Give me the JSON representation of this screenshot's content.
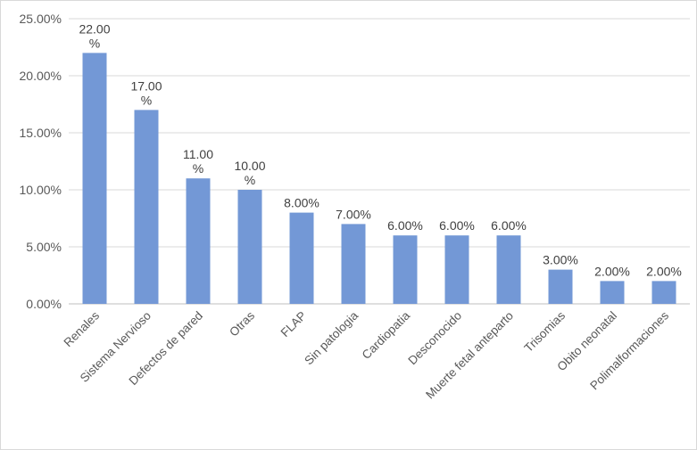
{
  "chart_data": {
    "type": "bar",
    "categories": [
      "Renales",
      "Sistema Nervioso",
      "Defectos de pared",
      "Otras",
      "FLAP",
      "Sin patologia",
      "Cardiopatia",
      "Desconocido",
      "Muerte fetal anteparto",
      "Trisomias",
      "Obito neonatal",
      "Polimalformaciones"
    ],
    "values": [
      22.0,
      17.0,
      11.0,
      10.0,
      8.0,
      7.0,
      6.0,
      6.0,
      6.0,
      3.0,
      2.0,
      2.0
    ],
    "data_labels": [
      "22.00 %",
      "17.00 %",
      "11.00 %",
      "10.00 %",
      "8.00%",
      "7.00%",
      "6.00%",
      "6.00%",
      "6.00%",
      "3.00%",
      "2.00%",
      "2.00%"
    ],
    "y_ticks": [
      "0.00%",
      "5.00%",
      "10.00%",
      "15.00%",
      "20.00%",
      "25.00%"
    ],
    "ylim": [
      0,
      25
    ],
    "title": "",
    "xlabel": "",
    "ylabel": "",
    "grid": true,
    "bar_color": "#7398d6"
  }
}
